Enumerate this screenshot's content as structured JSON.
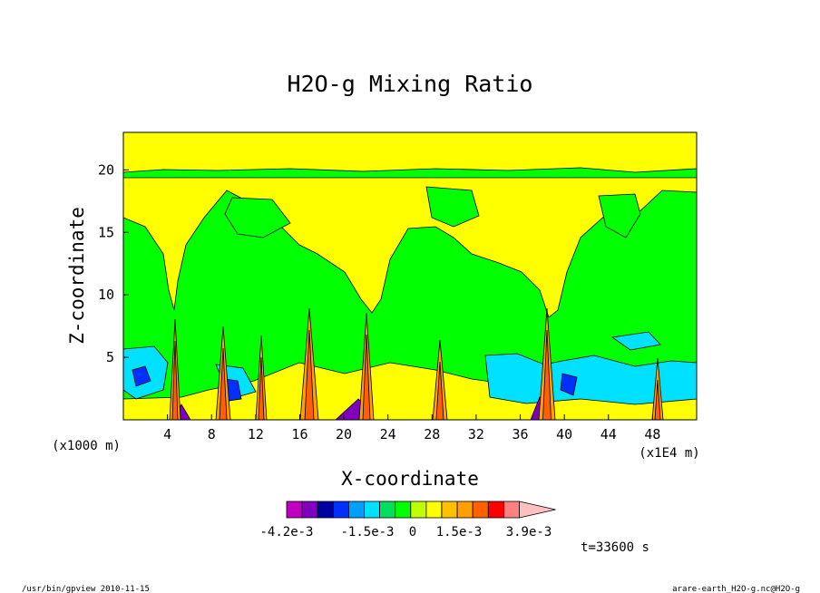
{
  "chart_data": {
    "type": "heatmap",
    "title": "H2O-g Mixing Ratio",
    "xlabel": "X-coordinate",
    "ylabel": "Z-coordinate",
    "x_unit_left": "(x1000 m)",
    "x_unit_right": "(x1E4 m)",
    "xlim": [
      0,
      52
    ],
    "ylim": [
      0,
      23
    ],
    "x_ticks": [
      "4",
      "8",
      "12",
      "16",
      "20",
      "24",
      "28",
      "32",
      "36",
      "40",
      "44",
      "48"
    ],
    "y_ticks": [
      "5",
      "10",
      "15",
      "20"
    ],
    "colorbar": {
      "colors": [
        "#c000c0",
        "#8000c0",
        "#0000a0",
        "#0030ff",
        "#00a0ff",
        "#00e0ff",
        "#00e060",
        "#00ff00",
        "#c0ff00",
        "#ffff00",
        "#ffc000",
        "#ffa000",
        "#ff6000",
        "#ff0000",
        "#ff8080",
        "#ffc0c0"
      ],
      "labels": [
        "-4.2e-3",
        "-1.5e-3",
        "0",
        "1.5e-3",
        "3.9e-3"
      ]
    },
    "time_label": "t=33600 s",
    "grid": false
  },
  "footer": {
    "left": "/usr/bin/gpview  2010-11-15",
    "right": "arare-earth_H2O-g.nc@H2O-g"
  }
}
